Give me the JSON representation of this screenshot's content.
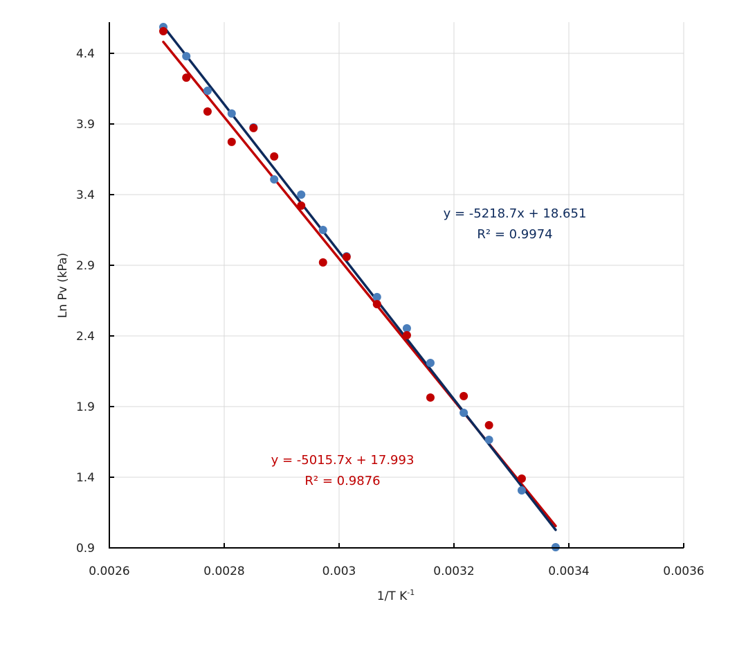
{
  "chart_data": {
    "type": "scatter",
    "title": "",
    "xlabel": "1/T K",
    "xlabel_superscript": "-1",
    "ylabel": "Ln  Pv (kPa)",
    "xlim": [
      0.0026,
      0.0036
    ],
    "ylim": [
      0.9,
      4.6
    ],
    "xticks": [
      0.0026,
      0.0028,
      0.003,
      0.0032,
      0.0034,
      0.0036
    ],
    "xtick_labels": [
      "0.0026",
      "0.0028",
      "0.003",
      "0.0032",
      "0.0034",
      "0.0036"
    ],
    "yticks": [
      0.9,
      1.4,
      1.9,
      2.4,
      2.9,
      3.4,
      3.9,
      4.4
    ],
    "ytick_labels": [
      "0.9",
      "1.4",
      "1.9",
      "2.4",
      "2.9",
      "3.4",
      "3.9",
      "4.4"
    ],
    "grid": true,
    "legend": "none",
    "series": [
      {
        "name": "series-blue",
        "color": "#4a7ebb",
        "x": [
          0.002694,
          0.002734,
          0.002771,
          0.002813,
          0.002851,
          0.002887,
          0.002934,
          0.002972,
          0.003013,
          0.003066,
          0.003118,
          0.003159,
          0.003217,
          0.003261,
          0.003318,
          0.003377
        ],
        "y": [
          4.586,
          4.38,
          4.135,
          3.974,
          3.876,
          3.508,
          3.4,
          3.15,
          2.964,
          2.675,
          2.454,
          2.209,
          1.856,
          1.665,
          1.307,
          0.905
        ],
        "trendline": {
          "slope": -5218.7,
          "intercept": 18.651,
          "x_range": [
            0.002694,
            0.003377
          ],
          "color": "#0d2a5c",
          "equation": "y = -5218.7x + 18.651",
          "r2": "R² = 0.9974"
        }
      },
      {
        "name": "series-red",
        "color": "#c00000",
        "x": [
          0.002694,
          0.002734,
          0.002771,
          0.002813,
          0.002851,
          0.002887,
          0.002934,
          0.002972,
          0.003013,
          0.003066,
          0.003118,
          0.003159,
          0.003217,
          0.003261,
          0.003318
        ],
        "y": [
          4.557,
          4.228,
          3.988,
          3.773,
          3.871,
          3.67,
          3.322,
          2.92,
          2.959,
          2.625,
          2.405,
          1.964,
          1.974,
          1.768,
          1.39
        ],
        "trendline": {
          "slope": -5015.7,
          "intercept": 17.993,
          "x_range": [
            0.002694,
            0.003377
          ],
          "color": "#c00000",
          "equation": "y = -5015.7x + 17.993",
          "r2": "R² = 0.9876"
        }
      }
    ]
  }
}
